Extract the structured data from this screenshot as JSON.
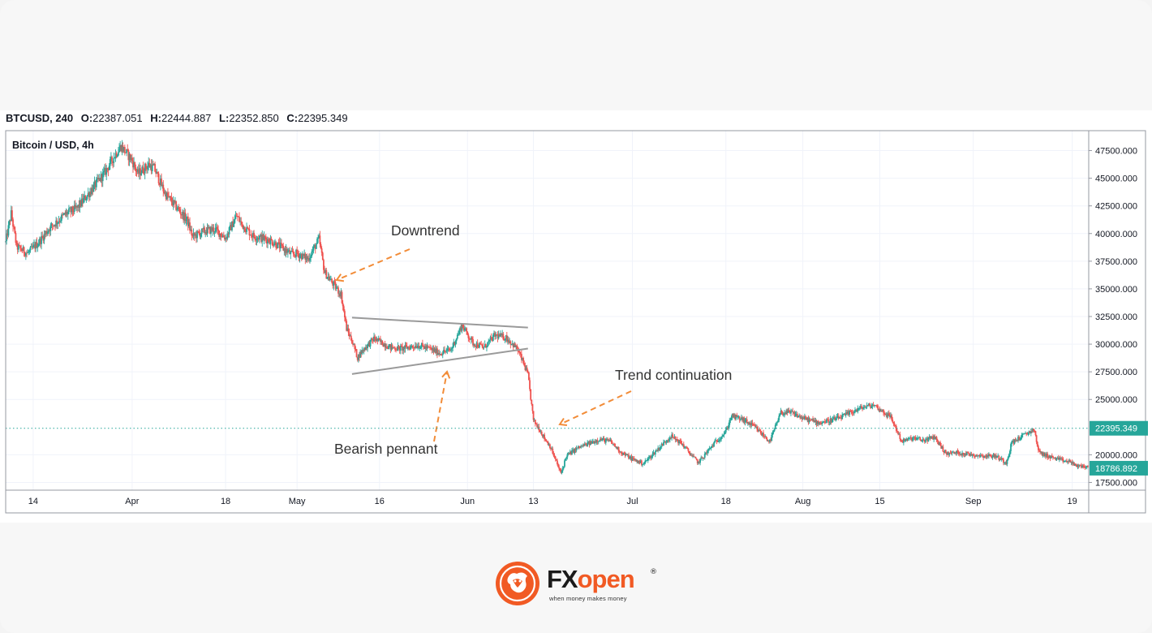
{
  "header": {
    "symbol": "BTCUSD, 240",
    "o_label": "O:",
    "o_value": "22387.051",
    "h_label": "H:",
    "h_value": "22444.887",
    "l_label": "L:",
    "l_value": "22352.850",
    "c_label": "C:",
    "c_value": "22395.349"
  },
  "chart_data": {
    "type": "candlestick",
    "title": "Bitcoin / USD, 4h",
    "y_axis": {
      "ticks": [
        "47500.000",
        "45000.000",
        "42500.000",
        "40000.000",
        "37500.000",
        "35000.000",
        "32500.000",
        "30000.000",
        "27500.000",
        "25000.000",
        "20000.000",
        "17500.000"
      ],
      "range": [
        16800,
        49300
      ]
    },
    "x_axis": {
      "ticks": [
        "14",
        "Apr",
        "18",
        "May",
        "16",
        "Jun",
        "13",
        "Jul",
        "18",
        "Aug",
        "15",
        "Sep",
        "19"
      ],
      "ticks_date": [
        "2022-03-14",
        "2022-04-01",
        "2022-04-18",
        "2022-05-01",
        "2022-05-16",
        "2022-06-01",
        "2022-06-13",
        "2022-07-01",
        "2022-07-18",
        "2022-08-01",
        "2022-08-15",
        "2022-09-01",
        "2022-09-19"
      ],
      "range": [
        "2022-03-09",
        "2022-09-22"
      ]
    },
    "price_path": [
      [
        "2022-03-09",
        39200
      ],
      [
        "2022-03-10",
        41800
      ],
      [
        "2022-03-11",
        38800
      ],
      [
        "2022-03-13",
        38200
      ],
      [
        "2022-03-15",
        39200
      ],
      [
        "2022-03-17",
        40500
      ],
      [
        "2022-03-20",
        41800
      ],
      [
        "2022-03-22",
        42300
      ],
      [
        "2022-03-25",
        44200
      ],
      [
        "2022-03-27",
        45500
      ],
      [
        "2022-03-29",
        47200
      ],
      [
        "2022-03-30",
        47900
      ],
      [
        "2022-04-01",
        46600
      ],
      [
        "2022-04-02",
        45400
      ],
      [
        "2022-04-04",
        46200
      ],
      [
        "2022-04-05",
        45900
      ],
      [
        "2022-04-07",
        43600
      ],
      [
        "2022-04-09",
        42400
      ],
      [
        "2022-04-11",
        41200
      ],
      [
        "2022-04-12",
        39700
      ],
      [
        "2022-04-14",
        40200
      ],
      [
        "2022-04-16",
        40400
      ],
      [
        "2022-04-18",
        39600
      ],
      [
        "2022-04-20",
        41600
      ],
      [
        "2022-04-21",
        40800
      ],
      [
        "2022-04-23",
        39800
      ],
      [
        "2022-04-26",
        39400
      ],
      [
        "2022-04-28",
        38800
      ],
      [
        "2022-04-30",
        38100
      ],
      [
        "2022-05-01",
        38200
      ],
      [
        "2022-05-03",
        37700
      ],
      [
        "2022-05-05",
        39500
      ],
      [
        "2022-05-06",
        36500
      ],
      [
        "2022-05-07",
        35800
      ],
      [
        "2022-05-09",
        34500
      ],
      [
        "2022-05-10",
        31400
      ],
      [
        "2022-05-11",
        30300
      ],
      [
        "2022-05-12",
        28800
      ],
      [
        "2022-05-13",
        29500
      ],
      [
        "2022-05-15",
        30500
      ],
      [
        "2022-05-18",
        29700
      ],
      [
        "2022-05-20",
        29600
      ],
      [
        "2022-05-23",
        29900
      ],
      [
        "2022-05-25",
        29600
      ],
      [
        "2022-05-27",
        29200
      ],
      [
        "2022-05-29",
        29500
      ],
      [
        "2022-05-31",
        31700
      ],
      [
        "2022-06-02",
        30100
      ],
      [
        "2022-06-04",
        29700
      ],
      [
        "2022-06-06",
        30800
      ],
      [
        "2022-06-08",
        30600
      ],
      [
        "2022-06-10",
        29600
      ],
      [
        "2022-06-11",
        28500
      ],
      [
        "2022-06-12",
        27200
      ],
      [
        "2022-06-13",
        23100
      ],
      [
        "2022-06-14",
        22400
      ],
      [
        "2022-06-15",
        21500
      ],
      [
        "2022-06-16",
        20800
      ],
      [
        "2022-06-18",
        18300
      ],
      [
        "2022-06-19",
        19900
      ],
      [
        "2022-06-21",
        20600
      ],
      [
        "2022-06-23",
        21000
      ],
      [
        "2022-06-25",
        21400
      ],
      [
        "2022-06-27",
        21200
      ],
      [
        "2022-06-29",
        20200
      ],
      [
        "2022-07-01",
        19600
      ],
      [
        "2022-07-03",
        19200
      ],
      [
        "2022-07-05",
        20200
      ],
      [
        "2022-07-08",
        21700
      ],
      [
        "2022-07-10",
        21000
      ],
      [
        "2022-07-12",
        19800
      ],
      [
        "2022-07-13",
        19300
      ],
      [
        "2022-07-16",
        21100
      ],
      [
        "2022-07-18",
        22100
      ],
      [
        "2022-07-19",
        23500
      ],
      [
        "2022-07-21",
        23200
      ],
      [
        "2022-07-23",
        22600
      ],
      [
        "2022-07-26",
        21200
      ],
      [
        "2022-07-28",
        23800
      ],
      [
        "2022-07-30",
        23800
      ],
      [
        "2022-08-01",
        23300
      ],
      [
        "2022-08-04",
        22900
      ],
      [
        "2022-08-06",
        23100
      ],
      [
        "2022-08-08",
        23400
      ],
      [
        "2022-08-10",
        23900
      ],
      [
        "2022-08-12",
        24300
      ],
      [
        "2022-08-14",
        24500
      ],
      [
        "2022-08-15",
        24100
      ],
      [
        "2022-08-17",
        23400
      ],
      [
        "2022-08-19",
        21200
      ],
      [
        "2022-08-21",
        21500
      ],
      [
        "2022-08-23",
        21300
      ],
      [
        "2022-08-25",
        21600
      ],
      [
        "2022-08-27",
        20100
      ],
      [
        "2022-08-29",
        20200
      ],
      [
        "2022-09-01",
        20000
      ],
      [
        "2022-09-03",
        19900
      ],
      [
        "2022-09-05",
        19900
      ],
      [
        "2022-09-07",
        19300
      ],
      [
        "2022-09-08",
        21100
      ],
      [
        "2022-09-10",
        21700
      ],
      [
        "2022-09-12",
        22300
      ],
      [
        "2022-09-13",
        20200
      ],
      [
        "2022-09-15",
        19800
      ],
      [
        "2022-09-17",
        19500
      ],
      [
        "2022-09-19",
        19300
      ],
      [
        "2022-09-20",
        18900
      ],
      [
        "2022-09-21",
        19000
      ],
      [
        "2022-09-22",
        18786.892
      ]
    ],
    "last_price_label": "22395.349",
    "current_price_label": "18786.892",
    "colors": {
      "up": "#26a69a",
      "down": "#ef5350",
      "arrow": "#f28c38",
      "pennant": "#9a9a9a",
      "price_tag": "#26a69a"
    },
    "annotations": [
      {
        "label": "Downtrend"
      },
      {
        "label": "Bearish pennant"
      },
      {
        "label": "Trend continuation"
      }
    ],
    "pennant": {
      "upper": [
        [
          "2022-05-11",
          32400
        ],
        [
          "2022-06-12",
          31500
        ]
      ],
      "lower": [
        [
          "2022-05-11",
          27300
        ],
        [
          "2022-06-12",
          29600
        ]
      ]
    }
  },
  "brand": {
    "name_part1": "FX",
    "name_part2": "open",
    "registered": "®",
    "tagline": "when money makes money",
    "colors": {
      "primary": "#f15a24",
      "text": "#1b1b1b"
    }
  }
}
